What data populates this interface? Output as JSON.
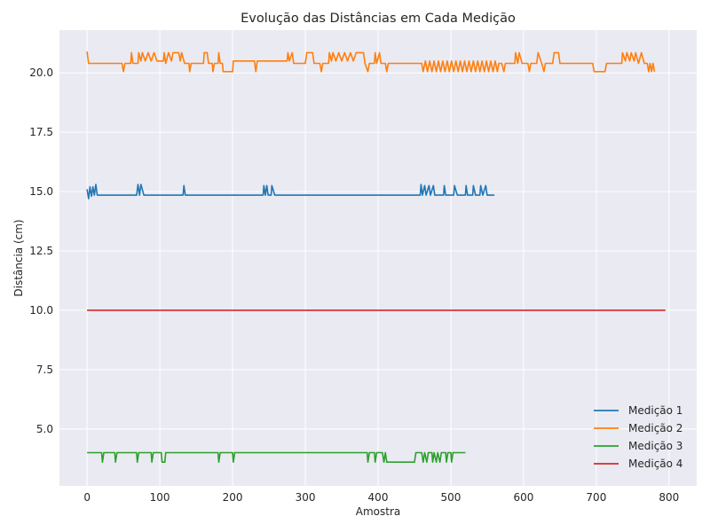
{
  "chart_data": {
    "type": "line",
    "title": "Evolução das Distâncias em Cada Medição",
    "xlabel": "Amostra",
    "ylabel": "Distância (cm)",
    "xlim": [
      -38,
      838
    ],
    "ylim": [
      2.6,
      21.8
    ],
    "xticks": [
      0,
      100,
      200,
      300,
      400,
      500,
      600,
      700,
      800
    ],
    "yticks": [
      5.0,
      7.5,
      10.0,
      12.5,
      15.0,
      17.5,
      20.0
    ],
    "ytick_labels": [
      "5.0",
      "7.5",
      "10.0",
      "12.5",
      "15.0",
      "17.5",
      "20.0"
    ],
    "grid": true,
    "legend_position": "lower-right",
    "series": [
      {
        "name": "Medição 1",
        "color": "#1f77b4",
        "points": [
          [
            0,
            15.1
          ],
          [
            2,
            14.7
          ],
          [
            4,
            15.2
          ],
          [
            6,
            14.8
          ],
          [
            8,
            15.2
          ],
          [
            10,
            14.85
          ],
          [
            12,
            15.3
          ],
          [
            14,
            14.85
          ],
          [
            68,
            14.85
          ],
          [
            70,
            15.3
          ],
          [
            72,
            14.85
          ],
          [
            74,
            15.3
          ],
          [
            78,
            14.85
          ],
          [
            132,
            14.85
          ],
          [
            133,
            15.25
          ],
          [
            135,
            14.85
          ],
          [
            242,
            14.85
          ],
          [
            243,
            15.25
          ],
          [
            245,
            14.85
          ],
          [
            247,
            15.25
          ],
          [
            249,
            14.85
          ],
          [
            253,
            14.85
          ],
          [
            254,
            15.25
          ],
          [
            258,
            14.85
          ],
          [
            458,
            14.85
          ],
          [
            459,
            15.3
          ],
          [
            461,
            14.85
          ],
          [
            464,
            15.25
          ],
          [
            466,
            14.85
          ],
          [
            470,
            15.25
          ],
          [
            472,
            14.85
          ],
          [
            476,
            15.25
          ],
          [
            478,
            14.85
          ],
          [
            490,
            14.85
          ],
          [
            491,
            15.25
          ],
          [
            493,
            14.85
          ],
          [
            504,
            14.85
          ],
          [
            505,
            15.25
          ],
          [
            509,
            14.85
          ],
          [
            520,
            14.85
          ],
          [
            521,
            15.25
          ],
          [
            523,
            14.85
          ],
          [
            530,
            14.85
          ],
          [
            531,
            15.25
          ],
          [
            534,
            14.85
          ],
          [
            540,
            14.85
          ],
          [
            541,
            15.25
          ],
          [
            544,
            14.85
          ],
          [
            548,
            15.25
          ],
          [
            550,
            14.85
          ],
          [
            560,
            14.85
          ]
        ]
      },
      {
        "name": "Medição 2",
        "color": "#ff7f0e",
        "points": [
          [
            0,
            20.9
          ],
          [
            2,
            20.4
          ],
          [
            48,
            20.4
          ],
          [
            50,
            20.05
          ],
          [
            52,
            20.4
          ],
          [
            60,
            20.4
          ],
          [
            61,
            20.85
          ],
          [
            63,
            20.4
          ],
          [
            70,
            20.4
          ],
          [
            71,
            20.85
          ],
          [
            74,
            20.5
          ],
          [
            76,
            20.85
          ],
          [
            80,
            20.5
          ],
          [
            84,
            20.85
          ],
          [
            88,
            20.5
          ],
          [
            92,
            20.85
          ],
          [
            96,
            20.5
          ],
          [
            105,
            20.5
          ],
          [
            106,
            20.85
          ],
          [
            108,
            20.4
          ],
          [
            112,
            20.85
          ],
          [
            116,
            20.5
          ],
          [
            118,
            20.85
          ],
          [
            126,
            20.85
          ],
          [
            128,
            20.5
          ],
          [
            130,
            20.85
          ],
          [
            134,
            20.4
          ],
          [
            140,
            20.4
          ],
          [
            141,
            20.05
          ],
          [
            143,
            20.4
          ],
          [
            160,
            20.4
          ],
          [
            161,
            20.85
          ],
          [
            165,
            20.85
          ],
          [
            167,
            20.4
          ],
          [
            172,
            20.4
          ],
          [
            173,
            20.05
          ],
          [
            175,
            20.4
          ],
          [
            180,
            20.4
          ],
          [
            181,
            20.85
          ],
          [
            183,
            20.4
          ],
          [
            186,
            20.4
          ],
          [
            187,
            20.05
          ],
          [
            200,
            20.05
          ],
          [
            201,
            20.5
          ],
          [
            230,
            20.5
          ],
          [
            232,
            20.05
          ],
          [
            234,
            20.5
          ],
          [
            275,
            20.5
          ],
          [
            276,
            20.85
          ],
          [
            278,
            20.5
          ],
          [
            282,
            20.85
          ],
          [
            284,
            20.4
          ],
          [
            300,
            20.4
          ],
          [
            302,
            20.85
          ],
          [
            310,
            20.85
          ],
          [
            312,
            20.4
          ],
          [
            320,
            20.4
          ],
          [
            322,
            20.05
          ],
          [
            324,
            20.4
          ],
          [
            332,
            20.4
          ],
          [
            333,
            20.85
          ],
          [
            336,
            20.5
          ],
          [
            338,
            20.85
          ],
          [
            342,
            20.5
          ],
          [
            346,
            20.85
          ],
          [
            350,
            20.5
          ],
          [
            354,
            20.85
          ],
          [
            358,
            20.5
          ],
          [
            362,
            20.85
          ],
          [
            366,
            20.5
          ],
          [
            370,
            20.85
          ],
          [
            380,
            20.85
          ],
          [
            382,
            20.4
          ],
          [
            386,
            20.05
          ],
          [
            388,
            20.4
          ],
          [
            395,
            20.4
          ],
          [
            396,
            20.85
          ],
          [
            398,
            20.4
          ],
          [
            402,
            20.85
          ],
          [
            404,
            20.4
          ],
          [
            410,
            20.4
          ],
          [
            412,
            20.05
          ],
          [
            414,
            20.4
          ],
          [
            460,
            20.4
          ],
          [
            462,
            20.05
          ],
          [
            465,
            20.5
          ],
          [
            468,
            20.05
          ],
          [
            471,
            20.5
          ],
          [
            474,
            20.05
          ],
          [
            477,
            20.5
          ],
          [
            480,
            20.05
          ],
          [
            483,
            20.5
          ],
          [
            486,
            20.05
          ],
          [
            489,
            20.5
          ],
          [
            492,
            20.05
          ],
          [
            495,
            20.5
          ],
          [
            498,
            20.05
          ],
          [
            501,
            20.5
          ],
          [
            504,
            20.05
          ],
          [
            507,
            20.5
          ],
          [
            510,
            20.05
          ],
          [
            513,
            20.5
          ],
          [
            516,
            20.05
          ],
          [
            519,
            20.5
          ],
          [
            522,
            20.05
          ],
          [
            525,
            20.5
          ],
          [
            528,
            20.05
          ],
          [
            531,
            20.5
          ],
          [
            534,
            20.05
          ],
          [
            537,
            20.5
          ],
          [
            540,
            20.05
          ],
          [
            543,
            20.5
          ],
          [
            546,
            20.05
          ],
          [
            549,
            20.5
          ],
          [
            552,
            20.05
          ],
          [
            555,
            20.5
          ],
          [
            558,
            20.05
          ],
          [
            561,
            20.5
          ],
          [
            564,
            20.05
          ],
          [
            566,
            20.4
          ],
          [
            570,
            20.4
          ],
          [
            573,
            20.05
          ],
          [
            575,
            20.4
          ],
          [
            588,
            20.4
          ],
          [
            589,
            20.85
          ],
          [
            592,
            20.4
          ],
          [
            594,
            20.85
          ],
          [
            598,
            20.4
          ],
          [
            606,
            20.4
          ],
          [
            608,
            20.05
          ],
          [
            610,
            20.4
          ],
          [
            618,
            20.4
          ],
          [
            620,
            20.85
          ],
          [
            625,
            20.4
          ],
          [
            628,
            20.05
          ],
          [
            630,
            20.4
          ],
          [
            640,
            20.4
          ],
          [
            642,
            20.85
          ],
          [
            648,
            20.85
          ],
          [
            650,
            20.4
          ],
          [
            695,
            20.4
          ],
          [
            697,
            20.05
          ],
          [
            712,
            20.05
          ],
          [
            714,
            20.4
          ],
          [
            735,
            20.4
          ],
          [
            736,
            20.85
          ],
          [
            740,
            20.5
          ],
          [
            742,
            20.85
          ],
          [
            746,
            20.5
          ],
          [
            748,
            20.85
          ],
          [
            752,
            20.5
          ],
          [
            754,
            20.85
          ],
          [
            758,
            20.4
          ],
          [
            762,
            20.85
          ],
          [
            766,
            20.4
          ],
          [
            770,
            20.4
          ],
          [
            772,
            20.05
          ],
          [
            774,
            20.4
          ],
          [
            776,
            20.05
          ],
          [
            778,
            20.4
          ],
          [
            780,
            20.05
          ]
        ]
      },
      {
        "name": "Medição 3",
        "color": "#2ca02c",
        "points": [
          [
            0,
            4.0
          ],
          [
            20,
            4.0
          ],
          [
            21,
            3.6
          ],
          [
            23,
            4.0
          ],
          [
            38,
            4.0
          ],
          [
            39,
            3.6
          ],
          [
            41,
            4.0
          ],
          [
            68,
            4.0
          ],
          [
            69,
            3.6
          ],
          [
            71,
            4.0
          ],
          [
            88,
            4.0
          ],
          [
            89,
            3.6
          ],
          [
            91,
            4.0
          ],
          [
            102,
            4.0
          ],
          [
            103,
            3.6
          ],
          [
            107,
            3.6
          ],
          [
            108,
            4.0
          ],
          [
            180,
            4.0
          ],
          [
            181,
            3.6
          ],
          [
            183,
            4.0
          ],
          [
            200,
            4.0
          ],
          [
            201,
            3.6
          ],
          [
            203,
            4.0
          ],
          [
            385,
            4.0
          ],
          [
            386,
            3.6
          ],
          [
            388,
            4.0
          ],
          [
            395,
            4.0
          ],
          [
            396,
            3.6
          ],
          [
            398,
            4.0
          ],
          [
            406,
            4.0
          ],
          [
            408,
            3.6
          ],
          [
            410,
            4.0
          ],
          [
            412,
            3.6
          ],
          [
            450,
            3.6
          ],
          [
            452,
            4.0
          ],
          [
            460,
            4.0
          ],
          [
            462,
            3.6
          ],
          [
            464,
            4.0
          ],
          [
            467,
            3.6
          ],
          [
            469,
            4.0
          ],
          [
            474,
            4.0
          ],
          [
            475,
            3.6
          ],
          [
            477,
            4.0
          ],
          [
            480,
            3.6
          ],
          [
            482,
            4.0
          ],
          [
            485,
            3.6
          ],
          [
            487,
            4.0
          ],
          [
            493,
            4.0
          ],
          [
            494,
            3.6
          ],
          [
            496,
            4.0
          ],
          [
            500,
            4.0
          ],
          [
            501,
            3.6
          ],
          [
            503,
            4.0
          ],
          [
            520,
            4.0
          ]
        ]
      },
      {
        "name": "Medição 4",
        "color": "#d62728",
        "points": [
          [
            0,
            10.0
          ],
          [
            795,
            10.0
          ]
        ]
      }
    ]
  }
}
